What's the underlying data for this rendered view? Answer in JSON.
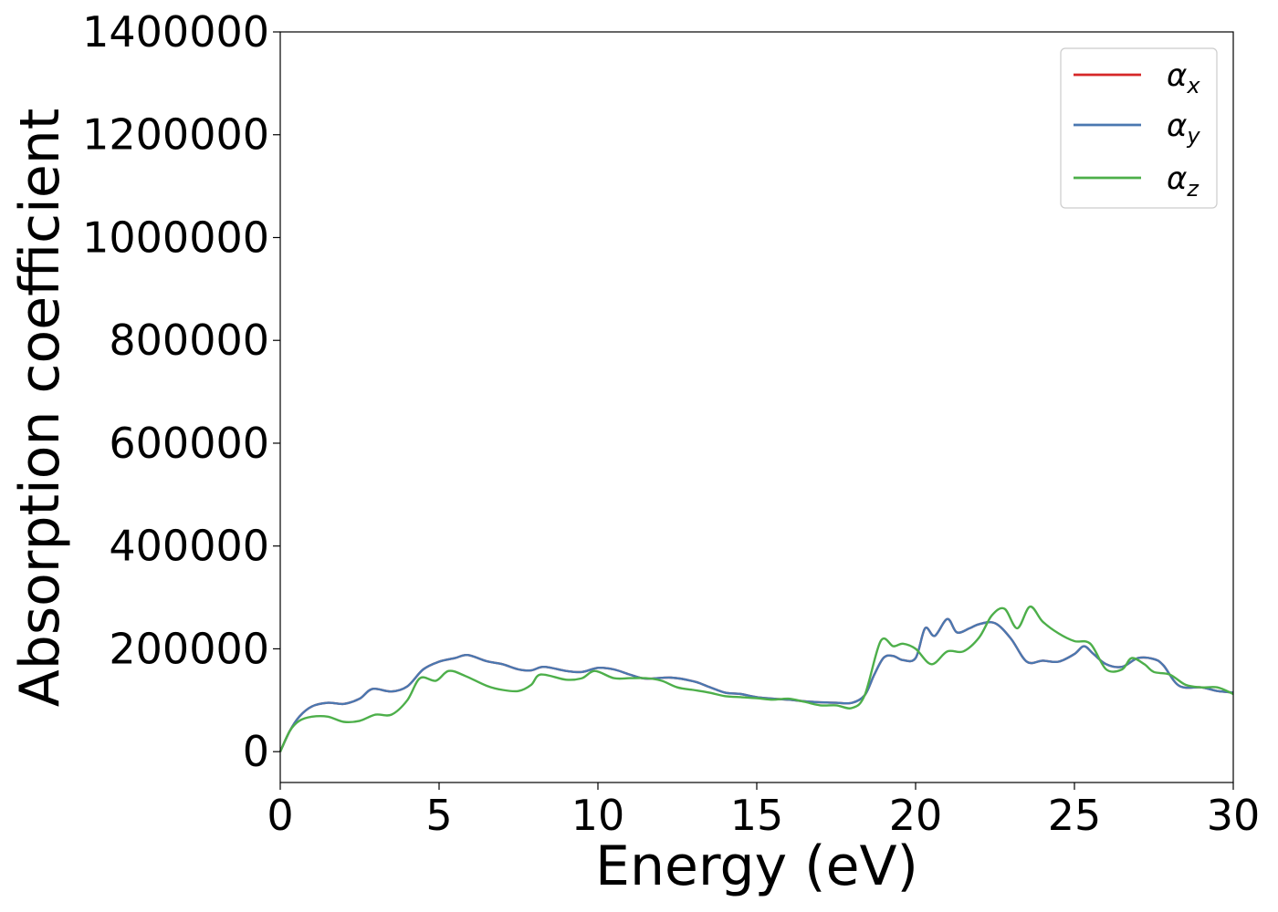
{
  "chart_data": {
    "type": "line",
    "xlabel": "Energy (eV)",
    "ylabel": "Absorption coefficient",
    "xlim": [
      0,
      30
    ],
    "ylim": [
      -60000,
      1400000
    ],
    "xticks": [
      0,
      5,
      10,
      15,
      20,
      25,
      30
    ],
    "yticks": [
      0,
      200000,
      400000,
      600000,
      800000,
      1000000,
      1200000,
      1400000
    ],
    "grid": false,
    "legend_position": "top-right",
    "series": [
      {
        "name": "αx",
        "symbol": "α",
        "subscript": "x",
        "color": "#d62728",
        "x": [
          0,
          0.3,
          0.6,
          1.0,
          1.5,
          2.0,
          2.5,
          2.9,
          3.5,
          4.0,
          4.5,
          5.0,
          5.5,
          5.9,
          6.5,
          7.0,
          7.5,
          7.9,
          8.3,
          9.0,
          9.5,
          10.0,
          10.5,
          11.0,
          11.5,
          12.3,
          13.0,
          13.5,
          14.0,
          14.5,
          15.0,
          15.5,
          16.0,
          16.5,
          17.0,
          17.5,
          18.0,
          18.4,
          18.7,
          19.0,
          19.3,
          19.6,
          20.0,
          20.3,
          20.6,
          21.0,
          21.3,
          21.7,
          22.0,
          22.5,
          23.0,
          23.5,
          24.0,
          24.5,
          25.0,
          25.3,
          25.6,
          26.0,
          26.5,
          27.0,
          27.5,
          27.8,
          28.3,
          29.0,
          29.5,
          30.0
        ],
        "values": [
          0,
          40000,
          68000,
          88000,
          95000,
          93000,
          103000,
          122000,
          117000,
          127000,
          160000,
          175000,
          182000,
          188000,
          176000,
          170000,
          160000,
          158000,
          165000,
          157000,
          155000,
          163000,
          160000,
          150000,
          142000,
          144000,
          137000,
          126000,
          115000,
          112000,
          106000,
          103000,
          101000,
          98000,
          96000,
          95000,
          95000,
          110000,
          150000,
          183000,
          186000,
          178000,
          182000,
          240000,
          225000,
          258000,
          232000,
          240000,
          248000,
          250000,
          220000,
          175000,
          177000,
          175000,
          190000,
          205000,
          190000,
          170000,
          165000,
          182000,
          180000,
          168000,
          128000,
          125000,
          118000,
          115000
        ]
      },
      {
        "name": "αy",
        "symbol": "α",
        "subscript": "y",
        "color": "#4a78b0",
        "x": [
          0,
          0.3,
          0.6,
          1.0,
          1.5,
          2.0,
          2.5,
          2.9,
          3.5,
          4.0,
          4.5,
          5.0,
          5.5,
          5.9,
          6.5,
          7.0,
          7.5,
          7.9,
          8.3,
          9.0,
          9.5,
          10.0,
          10.5,
          11.0,
          11.5,
          12.3,
          13.0,
          13.5,
          14.0,
          14.5,
          15.0,
          15.5,
          16.0,
          16.5,
          17.0,
          17.5,
          18.0,
          18.4,
          18.7,
          19.0,
          19.3,
          19.6,
          20.0,
          20.3,
          20.6,
          21.0,
          21.3,
          21.7,
          22.0,
          22.5,
          23.0,
          23.5,
          24.0,
          24.5,
          25.0,
          25.3,
          25.6,
          26.0,
          26.5,
          27.0,
          27.5,
          27.8,
          28.3,
          29.0,
          29.5,
          30.0
        ],
        "values": [
          0,
          40000,
          68000,
          88000,
          95000,
          93000,
          103000,
          122000,
          117000,
          127000,
          160000,
          175000,
          182000,
          188000,
          176000,
          170000,
          160000,
          158000,
          165000,
          157000,
          155000,
          163000,
          160000,
          150000,
          142000,
          144000,
          137000,
          126000,
          115000,
          112000,
          106000,
          103000,
          101000,
          98000,
          96000,
          95000,
          95000,
          110000,
          150000,
          183000,
          186000,
          178000,
          182000,
          240000,
          225000,
          258000,
          232000,
          240000,
          248000,
          250000,
          220000,
          175000,
          177000,
          175000,
          190000,
          205000,
          190000,
          170000,
          165000,
          182000,
          180000,
          168000,
          128000,
          125000,
          118000,
          115000
        ]
      },
      {
        "name": "αz",
        "symbol": "α",
        "subscript": "z",
        "color": "#4daf4a",
        "x": [
          0,
          0.3,
          0.6,
          1.0,
          1.5,
          2.0,
          2.5,
          3.0,
          3.5,
          4.0,
          4.4,
          4.9,
          5.3,
          5.8,
          6.5,
          7.0,
          7.5,
          7.9,
          8.2,
          9.0,
          9.5,
          9.9,
          10.5,
          11.0,
          11.5,
          12.0,
          12.5,
          13.0,
          13.5,
          14.0,
          14.5,
          15.0,
          15.5,
          16.0,
          16.5,
          17.0,
          17.5,
          18.0,
          18.4,
          18.9,
          19.3,
          19.6,
          20.0,
          20.5,
          21.0,
          21.5,
          22.0,
          22.4,
          22.8,
          23.2,
          23.6,
          24.0,
          24.5,
          25.0,
          25.5,
          26.0,
          26.5,
          26.8,
          27.2,
          27.5,
          28.0,
          28.5,
          29.0,
          29.5,
          30.0
        ],
        "values": [
          0,
          40000,
          60000,
          68000,
          68000,
          58000,
          60000,
          72000,
          72000,
          100000,
          143000,
          138000,
          157000,
          148000,
          128000,
          120000,
          118000,
          130000,
          150000,
          140000,
          143000,
          157000,
          143000,
          143000,
          143000,
          138000,
          125000,
          120000,
          115000,
          108000,
          106000,
          104000,
          101000,
          103000,
          97000,
          90000,
          90000,
          85000,
          110000,
          215000,
          205000,
          210000,
          200000,
          170000,
          195000,
          195000,
          222000,
          265000,
          278000,
          240000,
          282000,
          253000,
          230000,
          215000,
          210000,
          160000,
          160000,
          182000,
          170000,
          155000,
          150000,
          130000,
          125000,
          125000,
          112000
        ]
      }
    ]
  }
}
